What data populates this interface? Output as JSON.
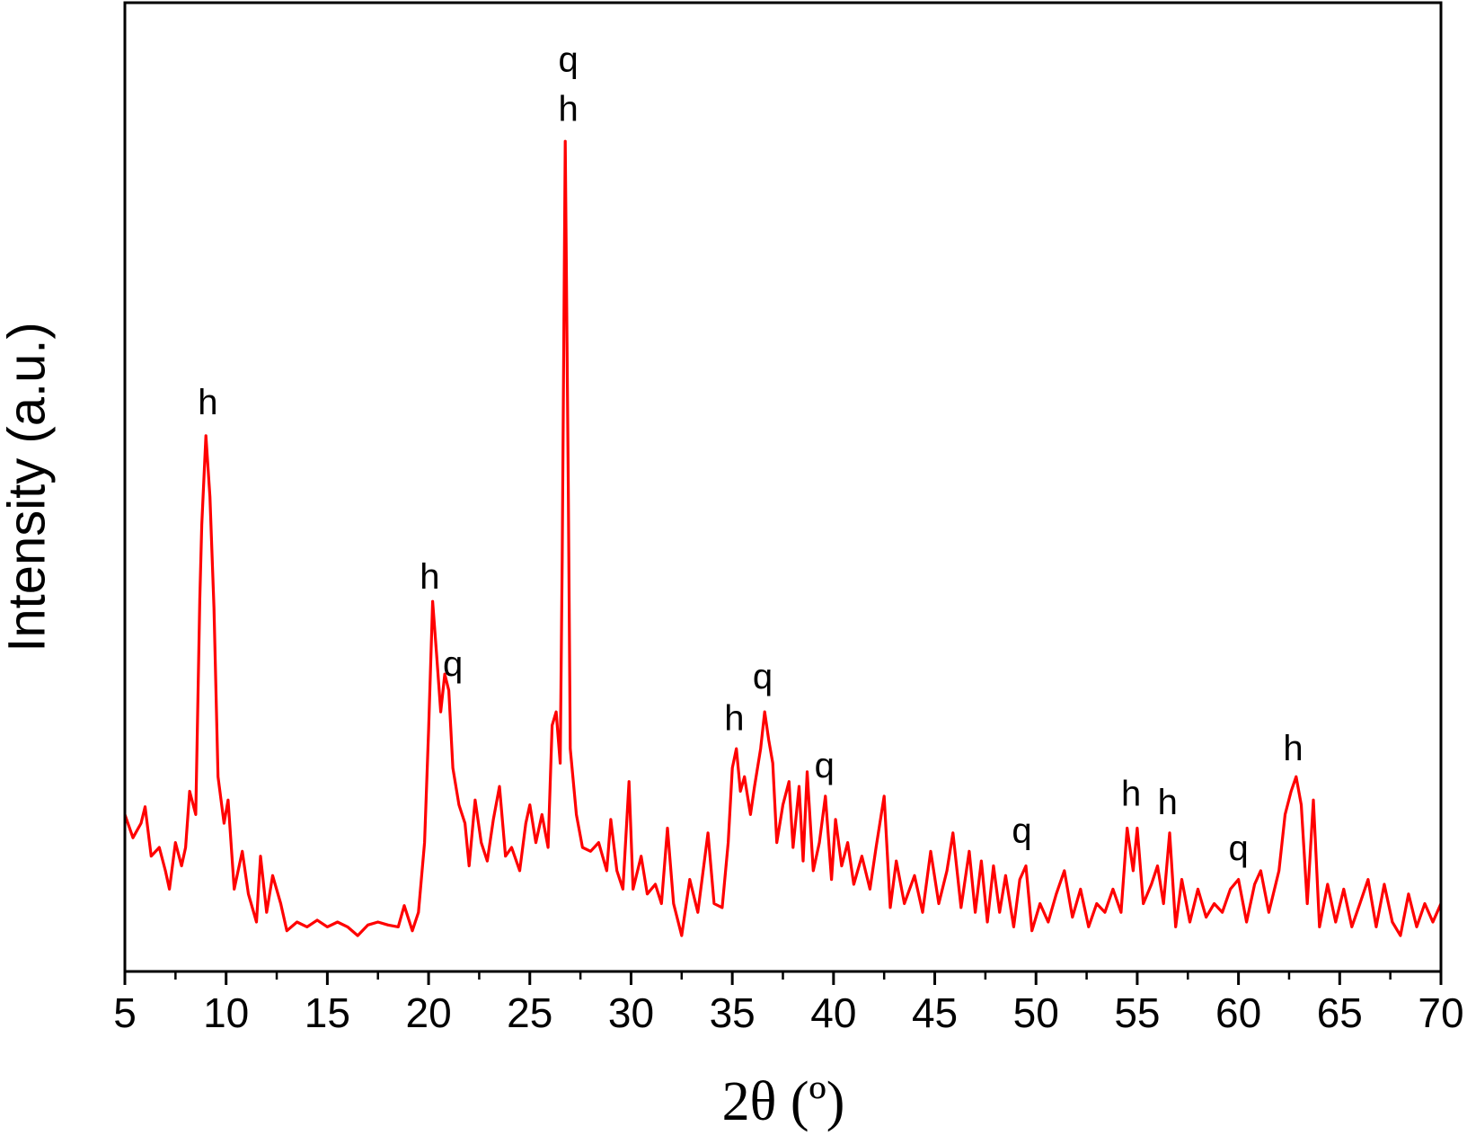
{
  "chart_data": {
    "type": "line",
    "x_label": "2θ (º)",
    "y_label": "Intensity (a.u.)",
    "color": "#ff0000",
    "xlim": [
      5,
      70
    ],
    "ylim": [
      0,
      100
    ],
    "xticks": [
      5,
      10,
      15,
      20,
      25,
      30,
      35,
      40,
      45,
      50,
      55,
      60,
      65,
      70
    ],
    "x": [
      5.0,
      5.4,
      5.8,
      6.0,
      6.3,
      6.7,
      7.0,
      7.2,
      7.5,
      7.8,
      8.0,
      8.2,
      8.5,
      8.7,
      8.8,
      9.0,
      9.2,
      9.4,
      9.6,
      9.9,
      10.1,
      10.4,
      10.8,
      11.1,
      11.5,
      11.7,
      12.0,
      12.3,
      12.7,
      13.0,
      13.5,
      14.0,
      14.5,
      15.0,
      15.5,
      16.0,
      16.5,
      17.0,
      17.5,
      18.0,
      18.5,
      18.8,
      19.2,
      19.5,
      19.8,
      20.0,
      20.2,
      20.4,
      20.6,
      20.8,
      21.0,
      21.2,
      21.5,
      21.8,
      22.0,
      22.3,
      22.6,
      22.9,
      23.2,
      23.5,
      23.8,
      24.1,
      24.5,
      24.8,
      25.0,
      25.3,
      25.6,
      25.9,
      26.1,
      26.3,
      26.5,
      26.6,
      26.75,
      26.9,
      27.0,
      27.3,
      27.6,
      28.0,
      28.4,
      28.8,
      29.0,
      29.3,
      29.6,
      29.9,
      30.1,
      30.5,
      30.8,
      31.2,
      31.5,
      31.8,
      32.1,
      32.5,
      32.9,
      33.3,
      33.8,
      34.1,
      34.5,
      34.8,
      35.0,
      35.2,
      35.4,
      35.6,
      35.9,
      36.1,
      36.4,
      36.6,
      36.8,
      37.0,
      37.2,
      37.5,
      37.8,
      38.0,
      38.3,
      38.5,
      38.7,
      39.0,
      39.3,
      39.6,
      39.9,
      40.1,
      40.4,
      40.7,
      41.0,
      41.4,
      41.8,
      42.1,
      42.5,
      42.8,
      43.1,
      43.5,
      44.0,
      44.4,
      44.8,
      45.2,
      45.6,
      45.9,
      46.3,
      46.7,
      47.0,
      47.3,
      47.6,
      47.9,
      48.2,
      48.5,
      48.9,
      49.2,
      49.5,
      49.8,
      50.2,
      50.6,
      51.0,
      51.4,
      51.8,
      52.2,
      52.6,
      53.0,
      53.4,
      53.8,
      54.2,
      54.5,
      54.8,
      55.0,
      55.3,
      55.7,
      56.0,
      56.3,
      56.6,
      56.9,
      57.2,
      57.6,
      58.0,
      58.4,
      58.8,
      59.2,
      59.6,
      60.0,
      60.4,
      60.8,
      61.1,
      61.5,
      62.0,
      62.3,
      62.6,
      62.85,
      63.1,
      63.4,
      63.7,
      64.0,
      64.4,
      64.8,
      65.2,
      65.6,
      66.0,
      66.4,
      66.8,
      67.2,
      67.6,
      68.0,
      68.4,
      68.8,
      69.2,
      69.6,
      70.0
    ],
    "values": [
      16.2,
      13.8,
      15.3,
      17.0,
      11.9,
      12.8,
      10.4,
      8.5,
      13.3,
      10.9,
      12.8,
      18.6,
      16.2,
      38.4,
      46.1,
      55.3,
      49.0,
      37.5,
      20.1,
      15.3,
      17.7,
      8.5,
      12.4,
      8.0,
      5.1,
      11.9,
      6.1,
      9.9,
      7.0,
      4.2,
      5.1,
      4.6,
      5.3,
      4.6,
      5.1,
      4.6,
      3.7,
      4.8,
      5.1,
      4.8,
      4.6,
      6.8,
      4.2,
      6.1,
      13.3,
      24.9,
      38.2,
      32.6,
      26.8,
      30.7,
      29.0,
      21.0,
      17.2,
      15.3,
      10.9,
      17.7,
      13.3,
      11.4,
      15.7,
      19.1,
      11.9,
      12.8,
      10.4,
      15.3,
      17.2,
      13.3,
      16.2,
      12.8,
      25.4,
      26.8,
      21.5,
      42.3,
      85.7,
      50.0,
      23.0,
      16.2,
      12.8,
      12.4,
      13.3,
      10.4,
      15.7,
      10.4,
      8.5,
      19.6,
      8.5,
      11.9,
      8.0,
      9.0,
      7.0,
      14.8,
      7.0,
      3.7,
      9.5,
      6.1,
      14.3,
      7.0,
      6.6,
      13.3,
      21.0,
      23.0,
      18.6,
      20.1,
      16.2,
      19.1,
      23.0,
      26.8,
      23.9,
      21.5,
      13.3,
      17.2,
      19.6,
      12.8,
      19.1,
      11.4,
      20.6,
      10.4,
      13.3,
      18.1,
      9.5,
      15.7,
      10.9,
      13.3,
      9.0,
      11.9,
      8.5,
      12.8,
      18.1,
      6.6,
      11.4,
      7.0,
      9.9,
      6.1,
      12.4,
      7.0,
      10.4,
      14.3,
      6.6,
      12.4,
      6.1,
      11.4,
      5.1,
      10.9,
      6.1,
      9.9,
      4.6,
      9.5,
      10.9,
      4.2,
      7.0,
      5.1,
      8.0,
      10.4,
      5.6,
      8.5,
      4.6,
      7.0,
      6.1,
      8.5,
      6.1,
      14.8,
      10.4,
      14.8,
      7.0,
      9.0,
      10.9,
      7.0,
      14.3,
      4.6,
      9.5,
      5.1,
      8.5,
      5.6,
      7.0,
      6.1,
      8.5,
      9.5,
      5.1,
      9.0,
      10.4,
      6.1,
      10.4,
      16.2,
      18.6,
      20.1,
      17.2,
      7.0,
      17.7,
      4.6,
      9.0,
      5.1,
      8.5,
      4.6,
      7.0,
      9.5,
      4.6,
      9.0,
      5.1,
      3.7,
      8.0,
      4.6,
      7.0,
      5.1,
      7.0
    ],
    "annotations": [
      {
        "text": "h",
        "x": 9.1,
        "y": 58.5
      },
      {
        "text": "q",
        "x": 26.9,
        "y": 93.9
      },
      {
        "text": "h",
        "x": 26.9,
        "y": 88.8
      },
      {
        "text": "h",
        "x": 20.06,
        "y": 40.5
      },
      {
        "text": "q",
        "x": 21.2,
        "y": 31.5
      },
      {
        "text": "h",
        "x": 35.1,
        "y": 25.9
      },
      {
        "text": "q",
        "x": 36.5,
        "y": 30.2
      },
      {
        "text": "q",
        "x": 39.55,
        "y": 21.0
      },
      {
        "text": "q",
        "x": 49.3,
        "y": 14.3
      },
      {
        "text": "h",
        "x": 54.7,
        "y": 18.1
      },
      {
        "text": "h",
        "x": 56.5,
        "y": 17.2
      },
      {
        "text": "q",
        "x": 60.0,
        "y": 12.5
      },
      {
        "text": "h",
        "x": 62.7,
        "y": 22.8
      }
    ]
  }
}
